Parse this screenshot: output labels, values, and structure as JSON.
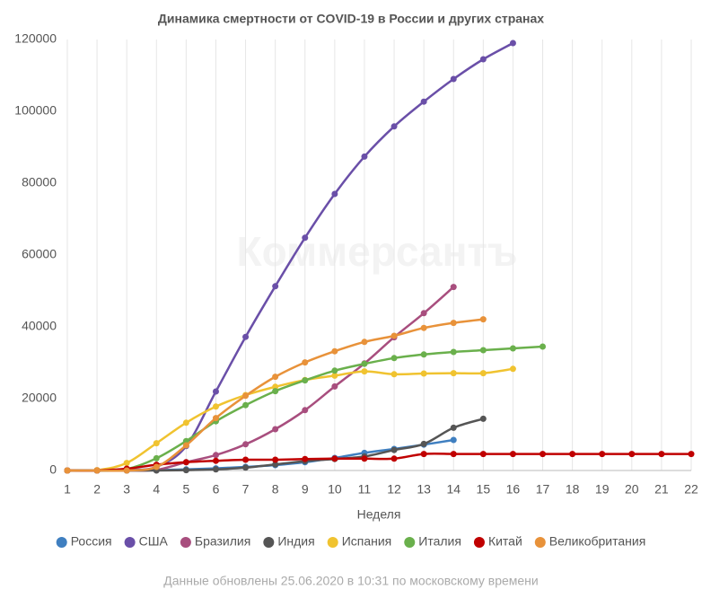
{
  "chart_data": {
    "type": "line",
    "title": "Динамика смертности от COVID-19 в России и других странах",
    "watermark": "Коммерсантъ",
    "x_label": "Неделя",
    "footnote": "Данные обновлены 25.06.2020 в 10:31 по московскому времени",
    "x": [
      1,
      2,
      3,
      4,
      5,
      6,
      7,
      8,
      9,
      10,
      11,
      12,
      13,
      14,
      15,
      16,
      17,
      18,
      19,
      20,
      21,
      22
    ],
    "xlim": [
      1,
      22
    ],
    "xticks": [
      1,
      2,
      3,
      4,
      5,
      6,
      7,
      8,
      9,
      10,
      11,
      12,
      13,
      14,
      15,
      16,
      17,
      18,
      19,
      20,
      21,
      22
    ],
    "ylim": [
      0,
      120000
    ],
    "yticks": [
      0,
      20000,
      40000,
      60000,
      80000,
      100000,
      120000
    ],
    "grid": true,
    "legend": "bottom",
    "series": [
      {
        "name": "Россия",
        "color": "#3f7fc0",
        "values": [
          0,
          0,
          20,
          100,
          300,
          600,
          1000,
          1500,
          2300,
          3500,
          4900,
          6000,
          7200,
          8500,
          null,
          null,
          null,
          null,
          null,
          null,
          null,
          null
        ]
      },
      {
        "name": "США",
        "color": "#6a4fa8",
        "values": [
          0,
          0,
          200,
          1000,
          6800,
          22000,
          37200,
          51300,
          64800,
          77000,
          87400,
          95800,
          102700,
          109000,
          114500,
          119000,
          null,
          null,
          null,
          null,
          null,
          null
        ]
      },
      {
        "name": "Бразилия",
        "color": "#a84e7e",
        "values": [
          0,
          0,
          0,
          200,
          2300,
          4300,
          7300,
          11500,
          16800,
          23400,
          29800,
          37100,
          43800,
          51100,
          null,
          null,
          null,
          null,
          null,
          null,
          null,
          null
        ]
      },
      {
        "name": "Индия",
        "color": "#555555",
        "values": [
          0,
          0,
          0,
          0,
          100,
          300,
          800,
          1700,
          2600,
          3200,
          3900,
          5700,
          7400,
          11900,
          14400,
          null,
          null,
          null,
          null,
          null,
          null,
          null
        ]
      },
      {
        "name": "Испания",
        "color": "#f0c330",
        "values": [
          0,
          100,
          2100,
          7600,
          13300,
          17800,
          21000,
          23300,
          25200,
          26400,
          27600,
          26800,
          27000,
          27100,
          27100,
          28300,
          null,
          null,
          null,
          null,
          null,
          null
        ]
      },
      {
        "name": "Италия",
        "color": "#6ab04c",
        "values": [
          0,
          0,
          400,
          3400,
          8200,
          13700,
          18200,
          22100,
          25100,
          27800,
          29700,
          31300,
          32300,
          33000,
          33500,
          34000,
          34500,
          null,
          null,
          null,
          null,
          null
        ]
      },
      {
        "name": "Китай",
        "color": "#c00000",
        "values": [
          0,
          0,
          500,
          1600,
          2300,
          2700,
          3000,
          3000,
          3200,
          3300,
          3300,
          3300,
          4600,
          4600,
          4600,
          4600,
          4600,
          4600,
          4600,
          4600,
          4600,
          4600
        ]
      },
      {
        "name": "Великобритания",
        "color": "#e8923a",
        "values": [
          0,
          0,
          0,
          1000,
          7000,
          14600,
          20800,
          26100,
          30100,
          33200,
          35800,
          37500,
          39700,
          41100,
          42100,
          null,
          null,
          null,
          null,
          null,
          null,
          null
        ]
      }
    ]
  }
}
